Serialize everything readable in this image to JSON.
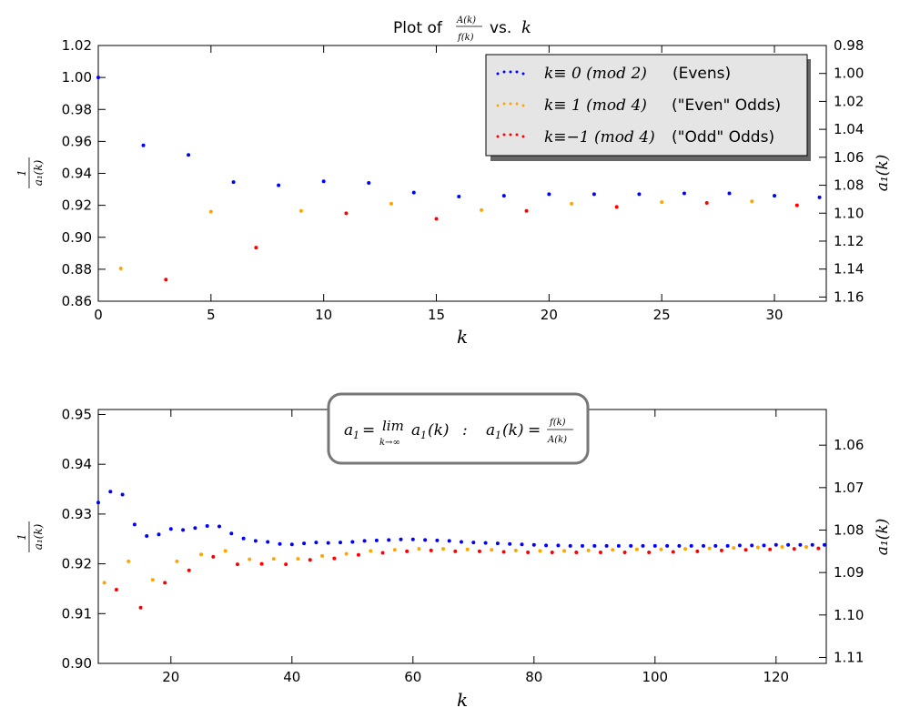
{
  "chart_data": [
    {
      "type": "scatter",
      "title": "Plot of A(k)/f(k) vs. k",
      "xlabel": "k",
      "ylabel_left": "1/a1(k)",
      "ylabel_right": "a1(k)",
      "xlim": [
        0,
        32.3
      ],
      "ylim_left": [
        0.86,
        1.02
      ],
      "ylim_right": [
        1.163,
        0.98
      ],
      "right_axis_inverted": true,
      "xticks": [
        "0",
        "5",
        "10",
        "15",
        "20",
        "25",
        "30"
      ],
      "yticks_left": [
        "0.86",
        "0.88",
        "0.90",
        "0.92",
        "0.94",
        "0.96",
        "0.98",
        "1.00",
        "1.02"
      ],
      "yticks_right": [
        "1.16",
        "1.14",
        "1.12",
        "1.10",
        "1.08",
        "1.06",
        "1.04",
        "1.02",
        "1.00",
        "0.98"
      ],
      "legend": {
        "placement": "top-right",
        "entries": [
          {
            "label": "(Evens)",
            "math": "k ≡  0 (mod 2)",
            "color": "#0000ff"
          },
          {
            "label": "(\"Even\" Odds)",
            "math": "k ≡  1 (mod 4)",
            "color": "#ffa500"
          },
          {
            "label": "(\"Odd\" Odds)",
            "math": "k ≡−1 (mod 4)",
            "color": "#ff0000"
          }
        ]
      },
      "series": [
        {
          "name": "(Evens)",
          "color": "#0000ff",
          "x": [
            0,
            2,
            4,
            6,
            8,
            10,
            12,
            14,
            16,
            18,
            20,
            22,
            24,
            26,
            28,
            30,
            32
          ],
          "y": [
            1.0,
            0.9575,
            0.9515,
            0.9345,
            0.9325,
            0.935,
            0.934,
            0.928,
            0.9255,
            0.926,
            0.927,
            0.927,
            0.927,
            0.9275,
            0.9275,
            0.926,
            0.925
          ]
        },
        {
          "name": "(\"Even\" Odds)",
          "color": "#ffa500",
          "x": [
            1,
            5,
            9,
            13,
            17,
            21,
            25,
            29
          ],
          "y": [
            0.8805,
            0.916,
            0.9165,
            0.921,
            0.917,
            0.921,
            0.922,
            0.9225
          ]
        },
        {
          "name": "(\"Odd\" Odds)",
          "color": "#ff0000",
          "x": [
            3,
            7,
            11,
            15,
            19,
            23,
            27,
            31
          ],
          "y": [
            0.8735,
            0.8935,
            0.915,
            0.9115,
            0.9165,
            0.919,
            0.9215,
            0.92
          ]
        }
      ]
    },
    {
      "type": "scatter",
      "xlabel": "k",
      "ylabel_left": "1/a1(k)",
      "ylabel_right": "a1(k)",
      "xlim": [
        8,
        128.3
      ],
      "ylim_left": [
        0.9,
        0.951
      ],
      "ylim_right": [
        1.1114,
        1.0516
      ],
      "right_axis_inverted": true,
      "xticks": [
        "20",
        "40",
        "60",
        "80",
        "100",
        "120"
      ],
      "yticks_left": [
        "0.90",
        "0.91",
        "0.92",
        "0.93",
        "0.94",
        "0.95"
      ],
      "yticks_right": [
        "1.11",
        "1.10",
        "1.09",
        "1.08",
        "1.07",
        "1.06"
      ],
      "annotation": "a1 = lim k→∞ a1(k)  :  a1(k) = f(k)/A(k)",
      "series": [
        {
          "name": "(Evens)",
          "color": "#0000ff",
          "x": [
            8,
            10,
            12,
            14,
            16,
            18,
            20,
            22,
            24,
            26,
            28,
            30,
            32,
            34,
            36,
            38,
            40,
            42,
            44,
            46,
            48,
            50,
            52,
            54,
            56,
            58,
            60,
            62,
            64,
            66,
            68,
            70,
            72,
            74,
            76,
            78,
            80,
            82,
            84,
            86,
            88,
            90,
            92,
            94,
            96,
            98,
            100,
            102,
            104,
            106,
            108,
            110,
            112,
            114,
            116,
            118,
            120,
            122,
            124,
            126,
            128
          ],
          "y": [
            0.9323,
            0.9345,
            0.9339,
            0.9279,
            0.9256,
            0.9259,
            0.927,
            0.9268,
            0.9272,
            0.9276,
            0.9275,
            0.9261,
            0.9251,
            0.9246,
            0.9244,
            0.924,
            0.9239,
            0.9241,
            0.9243,
            0.9242,
            0.9243,
            0.9244,
            0.9246,
            0.9247,
            0.9248,
            0.9249,
            0.9249,
            0.9248,
            0.9247,
            0.9246,
            0.9244,
            0.9243,
            0.9242,
            0.9241,
            0.924,
            0.9239,
            0.9238,
            0.9237,
            0.9237,
            0.9236,
            0.9236,
            0.9236,
            0.9236,
            0.9236,
            0.9236,
            0.9236,
            0.9236,
            0.9236,
            0.9236,
            0.9236,
            0.9236,
            0.9236,
            0.9236,
            0.9237,
            0.9237,
            0.9237,
            0.9238,
            0.9238,
            0.9238,
            0.9238,
            0.9238
          ]
        },
        {
          "name": "(\"Even\" Odds)",
          "color": "#ffa500",
          "x": [
            9,
            13,
            17,
            21,
            25,
            29,
            33,
            37,
            41,
            45,
            49,
            53,
            57,
            61,
            65,
            69,
            73,
            77,
            81,
            85,
            89,
            93,
            97,
            101,
            105,
            109,
            113,
            117,
            121,
            125
          ],
          "y": [
            0.9162,
            0.9205,
            0.9168,
            0.9205,
            0.9219,
            0.9226,
            0.9209,
            0.921,
            0.921,
            0.9216,
            0.922,
            0.9226,
            0.9228,
            0.923,
            0.923,
            0.9229,
            0.9228,
            0.9227,
            0.9226,
            0.9226,
            0.9227,
            0.9228,
            0.9229,
            0.9229,
            0.923,
            0.9231,
            0.9232,
            0.9233,
            0.9234,
            0.9234
          ]
        },
        {
          "name": "(\"Odd\" Odds)",
          "color": "#ff0000",
          "x": [
            11,
            15,
            19,
            23,
            27,
            31,
            35,
            39,
            43,
            47,
            51,
            55,
            59,
            63,
            67,
            71,
            75,
            79,
            83,
            87,
            91,
            95,
            99,
            103,
            107,
            111,
            115,
            119,
            123,
            127
          ],
          "y": [
            0.9148,
            0.9112,
            0.9162,
            0.9187,
            0.9214,
            0.9199,
            0.92,
            0.9199,
            0.9208,
            0.9211,
            0.9218,
            0.9222,
            0.9225,
            0.9227,
            0.9225,
            0.9225,
            0.9224,
            0.9223,
            0.9223,
            0.9223,
            0.9223,
            0.9223,
            0.9223,
            0.9224,
            0.9225,
            0.9227,
            0.9228,
            0.9229,
            0.923,
            0.9231
          ]
        }
      ]
    }
  ]
}
